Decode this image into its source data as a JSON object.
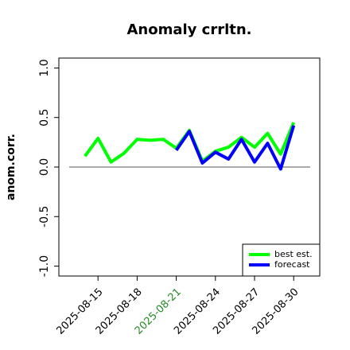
{
  "chart_data": {
    "type": "line",
    "title": "Anomaly crrltn.",
    "y_label": "anom.corr.",
    "x": [
      "2025-08-14",
      "2025-08-15",
      "2025-08-16",
      "2025-08-17",
      "2025-08-18",
      "2025-08-19",
      "2025-08-20",
      "2025-08-21",
      "2025-08-22",
      "2025-08-23",
      "2025-08-24",
      "2025-08-25",
      "2025-08-26",
      "2025-08-27",
      "2025-08-28",
      "2025-08-29",
      "2025-08-30"
    ],
    "series": [
      {
        "name": "best est.",
        "color": "#00ff00",
        "values": [
          0.11,
          0.29,
          0.05,
          0.14,
          0.28,
          0.27,
          0.28,
          0.19,
          0.37,
          0.06,
          0.16,
          0.2,
          0.3,
          0.2,
          0.34,
          0.13,
          0.45
        ]
      },
      {
        "name": "forecast",
        "color": "#0000ff",
        "values": [
          null,
          null,
          null,
          null,
          null,
          null,
          null,
          0.17,
          0.36,
          0.04,
          0.15,
          0.08,
          0.28,
          0.05,
          0.24,
          -0.02,
          0.42
        ]
      }
    ],
    "xlim": [
      "2025-08-12",
      "2025-09-01"
    ],
    "xticks": [
      "2025-08-15",
      "2025-08-18",
      "2025-08-21",
      "2025-08-24",
      "2025-08-27",
      "2025-08-30"
    ],
    "highlight_xtick": "2025-08-21",
    "highlight_color": "#228b22",
    "ylim": [
      -1.1,
      1.1
    ],
    "yticks": [
      -1.0,
      -0.5,
      0.0,
      0.5,
      1.0
    ],
    "yticks_labels": [
      "-1.0",
      "-0.5",
      "0.0",
      "0.5",
      "1.0"
    ],
    "hline": 0,
    "legend": "bottom-right"
  }
}
